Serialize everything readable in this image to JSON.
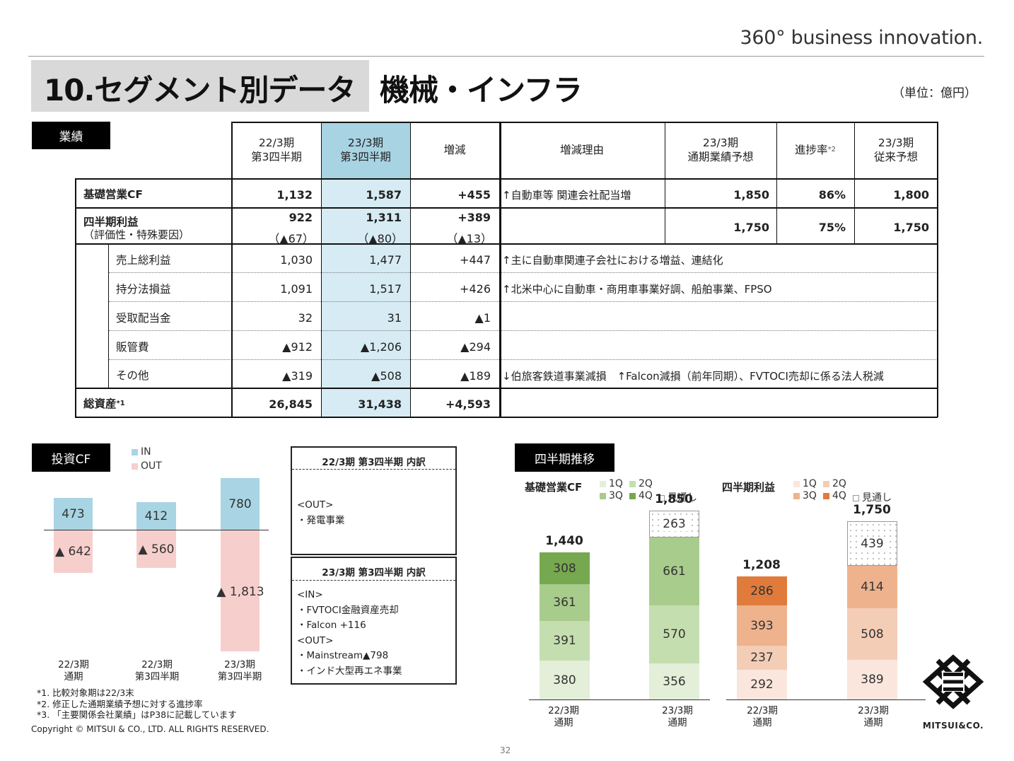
{
  "header": {
    "tagline": "360° business innovation.",
    "title": "10.セグメント別データ",
    "subtitle": "機械・インフラ",
    "unit": "（単位：億円）"
  },
  "results": {
    "section_label": "業績",
    "columns": [
      "22/3期\n第3四半期",
      "23/3期\n第3四半期",
      "増減",
      "増減理由",
      "23/3期\n通期業績予想",
      "進捗率*2",
      "23/3期\n従来予想"
    ],
    "col_labels": {
      "c1a": "22/3期",
      "c1b": "第3四半期",
      "c2a": "23/3期",
      "c2b": "第3四半期",
      "c3": "増減",
      "c4": "増減理由",
      "c5a": "23/3期",
      "c5b": "通期業績予想",
      "c6": "進捗率",
      "c6sup": "*2",
      "c7a": "23/3期",
      "c7b": "従来予想"
    },
    "rows": [
      {
        "label": "基礎営業CF",
        "v1": "1,132",
        "v2": "1,587",
        "diff": "+455",
        "reason": "↑自動車等 関連会社配当増",
        "forecast": "1,850",
        "progress": "86%",
        "prev": "1,800"
      },
      {
        "label": "四半期利益",
        "sublabel": "（評価性・特殊要因）",
        "v1": "922",
        "v1b": "（▲67）",
        "v2": "1,311",
        "v2b": "（▲80）",
        "diff": "+389",
        "diffb": "（▲13）",
        "reason": "",
        "forecast": "1,750",
        "progress": "75%",
        "prev": "1,750"
      },
      {
        "label": "売上総利益",
        "v1": "1,030",
        "v2": "1,477",
        "diff": "+447",
        "reason": "↑主に自動車関連子会社における増益、連結化"
      },
      {
        "label": "持分法損益",
        "v1": "1,091",
        "v2": "1,517",
        "diff": "+426",
        "reason": "↑北米中心に自動車・商用車事業好調、船舶事業、FPSO"
      },
      {
        "label": "受取配当金",
        "v1": "32",
        "v2": "31",
        "diff": "▲1",
        "reason": ""
      },
      {
        "label": "販管費",
        "v1": "▲912",
        "v2": "▲1,206",
        "diff": "▲294",
        "reason": ""
      },
      {
        "label": "その他",
        "v1": "▲319",
        "v2": "▲508",
        "diff": "▲189",
        "reason": "↓伯旅客鉄道事業減損　↑Falcon減損（前年同期）、FVTOCI売却に係る法人税減"
      },
      {
        "label": "総資産",
        "label_sup": "*1",
        "v1": "26,845",
        "v2": "31,438",
        "diff": "+4,593",
        "reason": ""
      }
    ]
  },
  "invest_cf": {
    "section_label": "投資CF",
    "legend": [
      "IN",
      "OUT"
    ],
    "colors": {
      "in": "#a9d4e3",
      "out": "#f6cfcd"
    },
    "bars": [
      {
        "period": "22/3期",
        "sub": "通期",
        "in": "473",
        "out": "▲ 642"
      },
      {
        "period": "22/3期",
        "sub": "第3四半期",
        "in": "412",
        "out": "▲ 560"
      },
      {
        "period": "23/3期",
        "sub": "第3四半期",
        "in": "780",
        "out": "▲ 1,813"
      }
    ]
  },
  "breakdown": {
    "box1": {
      "title": "22/3期 第3四半期 内訳",
      "lines": [
        "<OUT>",
        "・発電事業"
      ]
    },
    "box2": {
      "title": "23/3期 第3四半期 内訳",
      "lines": [
        "<IN>",
        "・FVTOCI金融資産売却",
        "・Falcon +116",
        "<OUT>",
        "・Mainstream▲798",
        "・インド大型再エネ事業"
      ]
    }
  },
  "quarterly": {
    "section_label": "四半期推移",
    "cf_title": "基礎営業CF",
    "profit_title": "四半期利益",
    "legend": [
      "1Q",
      "2Q",
      "3Q",
      "4Q",
      "見通し"
    ],
    "cf_colors": {
      "q1": "#e3efd8",
      "q2": "#c5deb0",
      "q3": "#a8cc8c",
      "q4": "#76a84f"
    },
    "profit_colors": {
      "q1": "#fae6dc",
      "q2": "#f4cdb6",
      "q3": "#eeb28d",
      "q4": "#e07b3c"
    },
    "chart_data": [
      {
        "type": "bar",
        "title": "基礎営業CF",
        "categories": [
          "22/3期 通期",
          "23/3期 通期"
        ],
        "totals": [
          "1,440",
          "1,850"
        ],
        "series": [
          {
            "name": "1Q",
            "values": [
              380,
              356
            ]
          },
          {
            "name": "2Q",
            "values": [
              391,
              570
            ]
          },
          {
            "name": "3Q",
            "values": [
              361,
              661
            ]
          },
          {
            "name": "4Q",
            "values": [
              308,
              null
            ]
          },
          {
            "name": "見通し",
            "values": [
              null,
              263
            ]
          }
        ]
      },
      {
        "type": "bar",
        "title": "四半期利益",
        "categories": [
          "22/3期 通期",
          "23/3期 通期"
        ],
        "totals": [
          "1,208",
          "1,750"
        ],
        "series": [
          {
            "name": "1Q",
            "values": [
              292,
              389
            ]
          },
          {
            "name": "2Q",
            "values": [
              237,
              508
            ]
          },
          {
            "name": "3Q",
            "values": [
              393,
              414
            ]
          },
          {
            "name": "4Q",
            "values": [
              286,
              null
            ]
          },
          {
            "name": "見通し",
            "values": [
              null,
              439
            ]
          }
        ]
      }
    ],
    "xlabels": [
      {
        "a": "22/3期",
        "b": "通期"
      },
      {
        "a": "23/3期",
        "b": "通期"
      }
    ]
  },
  "footnotes": [
    "*1. 比較対象期は22/3末",
    "*2. 修正した通期業績予想に対する進捗率",
    "*3. 「主要関係会社業績」はP38に記載しています"
  ],
  "copyright": "Copyright © MITSUI & CO., LTD. ALL RIGHTS RESERVED.",
  "page_number": "32",
  "logo_text": "MITSUI&CO."
}
